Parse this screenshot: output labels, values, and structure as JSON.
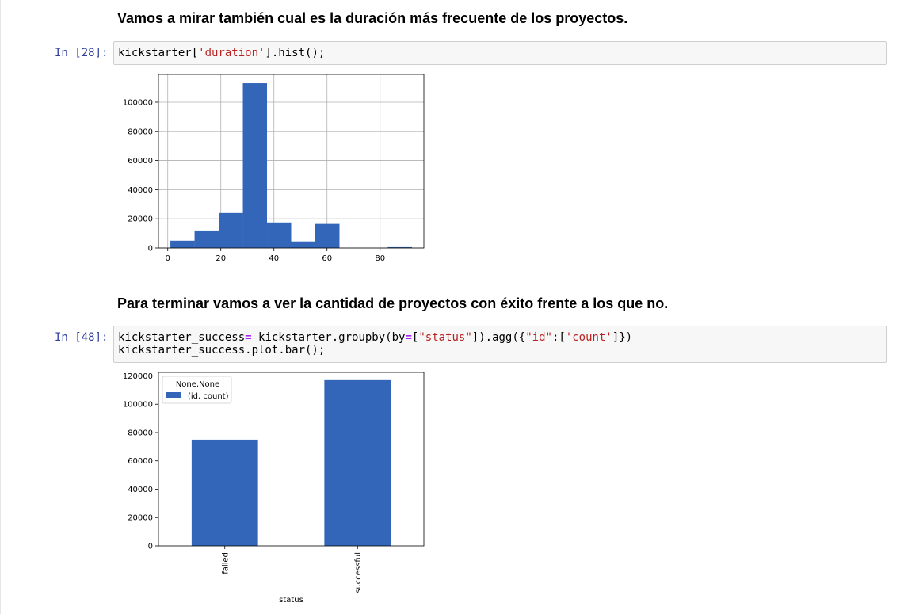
{
  "notebook": {
    "cells": [
      {
        "heading": "Vamos a mirar también cual es la duración más frecuente de los proyectos.",
        "prompt": "In [28]:",
        "code": {
          "line1": {
            "p1": "kickstarter[",
            "s1": "'duration'",
            "p2": "].hist();"
          }
        }
      },
      {
        "heading": "Para terminar vamos a ver la cantidad de proyectos con éxito frente a los que no.",
        "prompt": "In [48]:",
        "code": {
          "line1": {
            "p1": "kickstarter_success",
            "o1": "=",
            "p2": " kickstarter.groupby(by",
            "o2": "=",
            "p3": "[",
            "s1": "\"status\"",
            "p4": "]).agg({",
            "s2": "\"id\"",
            "p5": ":[",
            "s3": "'count'",
            "p6": "]})"
          },
          "line2": "kickstarter_success.plot.bar();"
        }
      }
    ]
  },
  "chart_data": [
    {
      "type": "bar",
      "title": "",
      "xlabel": "",
      "ylabel": "",
      "bins": [
        {
          "x0": 1,
          "x1": 10.1,
          "value": 5000
        },
        {
          "x0": 10.1,
          "x1": 19.2,
          "value": 12000
        },
        {
          "x0": 19.2,
          "x1": 28.3,
          "value": 24000
        },
        {
          "x0": 28.3,
          "x1": 37.4,
          "value": 113000
        },
        {
          "x0": 37.4,
          "x1": 46.5,
          "value": 17500
        },
        {
          "x0": 46.5,
          "x1": 55.6,
          "value": 4500
        },
        {
          "x0": 55.6,
          "x1": 64.7,
          "value": 16500
        },
        {
          "x0": 64.7,
          "x1": 73.8,
          "value": 0
        },
        {
          "x0": 73.8,
          "x1": 82.9,
          "value": 0
        },
        {
          "x0": 82.9,
          "x1": 92,
          "value": 600
        }
      ],
      "xlim": [
        -3.5,
        96.5
      ],
      "ylim": [
        0,
        119000
      ],
      "xticks": [
        0,
        20,
        40,
        60,
        80
      ],
      "yticks": [
        0,
        20000,
        40000,
        60000,
        80000,
        100000
      ],
      "grid": true,
      "color": "#3366b8"
    },
    {
      "type": "bar",
      "title": "",
      "categories": [
        "failed",
        "successful"
      ],
      "series": [
        {
          "name": "(id, count)",
          "values": [
            75000,
            117000
          ]
        }
      ],
      "xlabel": "status",
      "ylabel": "",
      "ylim": [
        0,
        122500
      ],
      "yticks": [
        0,
        20000,
        40000,
        60000,
        80000,
        100000,
        120000
      ],
      "grid": false,
      "legend": {
        "title": "None,None",
        "placement": "top-left"
      },
      "color": "#3366b8"
    }
  ]
}
